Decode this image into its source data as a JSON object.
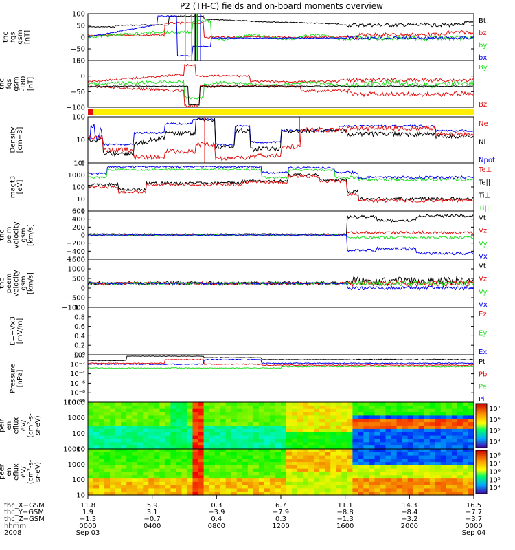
{
  "title": "P2 (TH-C) fields and on-board moments overview",
  "colors": {
    "black": "#000000",
    "red": "#e01010",
    "green": "#22dd22",
    "blue": "#0000ee",
    "yellow": "#ffee00"
  },
  "chart_data": [
    {
      "type": "line",
      "panel": "fgs-gsm",
      "ylabel": [
        "thc",
        "fgs",
        "gsm",
        "[nT]"
      ],
      "ylim": [
        -100,
        100
      ],
      "yticks": [
        "100",
        "50",
        "0",
        "−50",
        "−100"
      ],
      "legend": [
        {
          "name": "Bt",
          "color": "#000000"
        },
        {
          "name": "bz",
          "color": "#e01010"
        },
        {
          "name": "by",
          "color": "#22dd22"
        },
        {
          "name": "bx",
          "color": "#0000ee"
        }
      ]
    },
    {
      "type": "line",
      "panel": "fgs-gsm-dsl",
      "ylabel": [
        "thc",
        "fgs",
        "gsm",
        "-180",
        "[nT]"
      ],
      "ylim": [
        -120,
        50
      ],
      "yticks": [
        "50",
        "0",
        "−50",
        "−100"
      ],
      "legend": [
        {
          "name": "By",
          "color": "#22dd22"
        },
        {
          "name": "Bz",
          "color": "#e01010"
        }
      ]
    },
    {
      "type": "line",
      "panel": "density",
      "ylabel": [
        "Density",
        "[cm−3]"
      ],
      "ylim": [
        0.5,
        150
      ],
      "log": true,
      "yticks": [
        "100",
        "10",
        "1"
      ],
      "legend": [
        {
          "name": "Ne",
          "color": "#e01010"
        },
        {
          "name": "Ni",
          "color": "#000000"
        },
        {
          "name": "Npot",
          "color": "#0000ee"
        }
      ]
    },
    {
      "type": "line",
      "panel": "temperature",
      "ylabel": [
        "magt3",
        "[eV]"
      ],
      "ylim": [
        1,
        30000
      ],
      "log": true,
      "yticks": [
        "10⁴",
        "1000",
        "100",
        "10",
        "1"
      ],
      "legend": [
        {
          "name": "Te⊥",
          "color": "#e01010"
        },
        {
          "name": "Te||",
          "color": "#000000"
        },
        {
          "name": "Ti⊥",
          "color": "#000000"
        },
        {
          "name": "Ti||",
          "color": "#22dd22"
        }
      ]
    },
    {
      "type": "line",
      "panel": "peim-velocity",
      "ylabel": [
        "thc",
        "peim",
        "velocity",
        "gsm",
        "[km/s]"
      ],
      "ylim": [
        -600,
        600
      ],
      "yticks": [
        "600",
        "400",
        "200",
        "0",
        "−200",
        "−400",
        "−600"
      ],
      "legend": [
        {
          "name": "Vt",
          "color": "#000000"
        },
        {
          "name": "Vz",
          "color": "#e01010"
        },
        {
          "name": "Vy",
          "color": "#22dd22"
        },
        {
          "name": "Vx",
          "color": "#0000ee"
        }
      ]
    },
    {
      "type": "line",
      "panel": "peem-velocity",
      "ylabel": [
        "thc",
        "peem",
        "velocity",
        "gsm",
        "[km/s]"
      ],
      "ylim": [
        -1500,
        1500
      ],
      "yticks": [
        "1500",
        "1000",
        "500",
        "0",
        "−500",
        "−1000"
      ],
      "legend": [
        {
          "name": "Vt",
          "color": "#000000"
        },
        {
          "name": "Vz",
          "color": "#e01010"
        },
        {
          "name": "Vy",
          "color": "#22dd22"
        },
        {
          "name": "Vx",
          "color": "#0000ee"
        }
      ]
    },
    {
      "type": "line",
      "panel": "efield",
      "ylabel": [
        "E=−VxB",
        "[mV/m]"
      ],
      "ylim": [
        0,
        1
      ],
      "yticks": [
        "1.0",
        "0.8",
        "0.6",
        "0.4",
        "0.2",
        "0.0"
      ],
      "legend": [
        {
          "name": "Ez",
          "color": "#e01010"
        },
        {
          "name": "Ey",
          "color": "#22dd22"
        },
        {
          "name": "Ex",
          "color": "#0000ee"
        }
      ]
    },
    {
      "type": "line",
      "panel": "pressure",
      "ylabel": [
        "Pressure",
        "[nPa]"
      ],
      "ylim": [
        -10,
        1
      ],
      "log": true,
      "yticks": [
        "10⁰",
        "10⁻²",
        "10⁻⁴",
        "10⁻⁶",
        "10⁻⁸",
        "10⁻¹⁰"
      ],
      "legend": [
        {
          "name": "Pt",
          "color": "#000000"
        },
        {
          "name": "Pb",
          "color": "#e01010"
        },
        {
          "name": "Pe",
          "color": "#22dd22"
        },
        {
          "name": "Pi",
          "color": "#0000ee"
        }
      ]
    },
    {
      "type": "heatmap",
      "panel": "peir",
      "ylabel": [
        "thc",
        "peir",
        "en",
        "eflux",
        "eV/",
        "(cm²-s-",
        "sr-eV)"
      ],
      "ylim": [
        10,
        30000
      ],
      "log": true,
      "yticks": [
        "10000",
        "1000",
        "100",
        "10"
      ],
      "colorbar": [
        "10⁷",
        "10⁶",
        "10⁵",
        "10⁴"
      ]
    },
    {
      "type": "heatmap",
      "panel": "peer",
      "ylabel": [
        "thc",
        "peer",
        "en",
        "eflux",
        "eV/",
        "(cm²-s-",
        "sr-eV)"
      ],
      "ylim": [
        10,
        30000
      ],
      "log": true,
      "yticks": [
        "10000",
        "1000",
        "100",
        "10"
      ],
      "colorbar": [
        "10⁸",
        "10⁷",
        "10⁶",
        "10⁵",
        "10⁴"
      ]
    }
  ],
  "xaxis": {
    "row_labels": [
      "thc_X−GSM",
      "thc_Y−GSM",
      "thc_Z−GSM",
      "hhmm",
      "2008"
    ],
    "ticks": [
      {
        "x": "11.8",
        "y": "1.9",
        "z": "−1.3",
        "time": "0000",
        "date": "Sep 03"
      },
      {
        "x": "5.9",
        "y": "3.1",
        "z": "−0.7",
        "time": "0400",
        "date": ""
      },
      {
        "x": "0.3",
        "y": "−3.9",
        "z": "0.4",
        "time": "0800",
        "date": ""
      },
      {
        "x": "6.7",
        "y": "−7.9",
        "z": "0.3",
        "time": "1200",
        "date": ""
      },
      {
        "x": "11.1",
        "y": "−8.8",
        "z": "−1.3",
        "time": "1600",
        "date": ""
      },
      {
        "x": "14.3",
        "y": "−8.4",
        "z": "−3.2",
        "time": "2000",
        "date": ""
      },
      {
        "x": "16.5",
        "y": "−7.7",
        "z": "−3.7",
        "time": "0000",
        "date": "Sep 04"
      }
    ]
  }
}
